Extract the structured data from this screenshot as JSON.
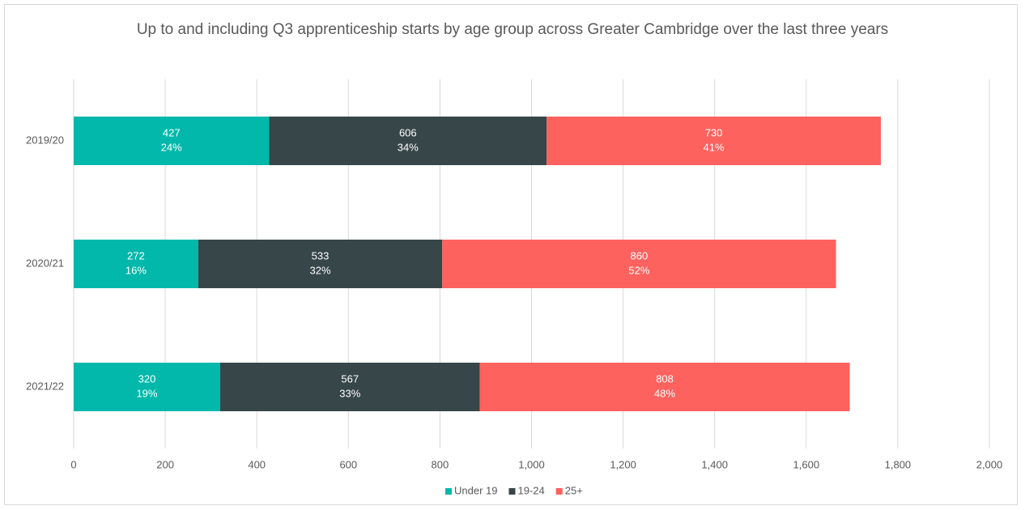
{
  "chart_data": {
    "type": "stacked_barh",
    "title": "Up to and including Q3 apprenticeship starts by age group across Greater Cambridge over the last three years",
    "categories": [
      "2019/20",
      "2020/21",
      "2021/22"
    ],
    "series": [
      {
        "name": "Under 19",
        "color": "#01b8aa",
        "values": [
          427,
          272,
          320
        ],
        "percent_labels": [
          "24%",
          "16%",
          "19%"
        ]
      },
      {
        "name": "19-24",
        "color": "#374649",
        "values": [
          606,
          533,
          567
        ],
        "percent_labels": [
          "34%",
          "32%",
          "33%"
        ]
      },
      {
        "name": "25+",
        "color": "#fd625e",
        "values": [
          730,
          860,
          808
        ],
        "percent_labels": [
          "41%",
          "52%",
          "48%"
        ]
      }
    ],
    "xlim": [
      0,
      2000
    ],
    "xticks": [
      0,
      200,
      400,
      600,
      800,
      {
        "value": 1000,
        "label": "1,000"
      },
      {
        "value": 1200,
        "label": "1,200"
      },
      {
        "value": 1400,
        "label": "1,400"
      },
      {
        "value": 1600,
        "label": "1,600"
      },
      {
        "value": 1800,
        "label": "1,800"
      },
      {
        "value": 2000,
        "label": "2,000"
      }
    ],
    "grid": true,
    "legend": "bottom"
  }
}
